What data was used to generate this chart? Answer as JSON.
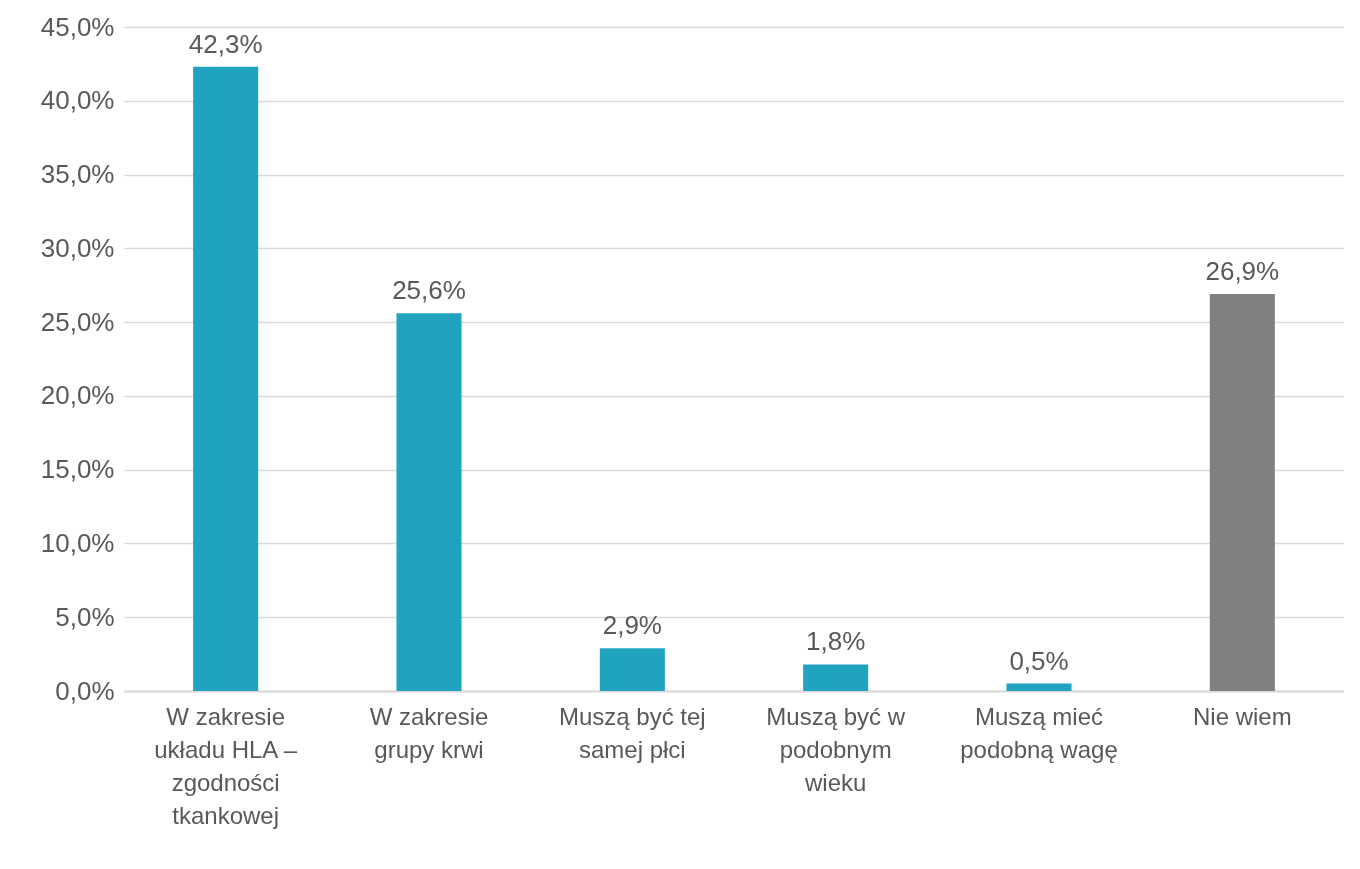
{
  "chart_data": {
    "type": "bar",
    "categories": [
      "W zakresie układu HLA – zgodności tkankowej",
      "W zakresie grupy krwi",
      "Muszą być tej samej płci",
      "Muszą być w podobnym wieku",
      "Muszą mieć podobną wagę",
      "Nie wiem"
    ],
    "values": [
      42.3,
      25.6,
      2.9,
      1.8,
      0.5,
      26.9
    ],
    "colors": [
      "#21a2bf",
      "#21a2bf",
      "#21a2bf",
      "#21a2bf",
      "#21a2bf",
      "#808080"
    ],
    "value_labels": [
      "42,3%",
      "25,6%",
      "2,9%",
      "1,8%",
      "0,5%",
      "26,9%"
    ],
    "ylim": [
      0,
      45
    ],
    "yticks": [
      {
        "value": 0,
        "label": "0,0%"
      },
      {
        "value": 5,
        "label": "5,0%"
      },
      {
        "value": 10,
        "label": "10,0%"
      },
      {
        "value": 15,
        "label": "15,0%"
      },
      {
        "value": 20,
        "label": "20,0%"
      },
      {
        "value": 25,
        "label": "25,0%"
      },
      {
        "value": 30,
        "label": "30,0%"
      },
      {
        "value": 35,
        "label": "35,0%"
      },
      {
        "value": 40,
        "label": "40,0%"
      },
      {
        "value": 45,
        "label": "45,0%"
      }
    ],
    "grid": "y"
  }
}
